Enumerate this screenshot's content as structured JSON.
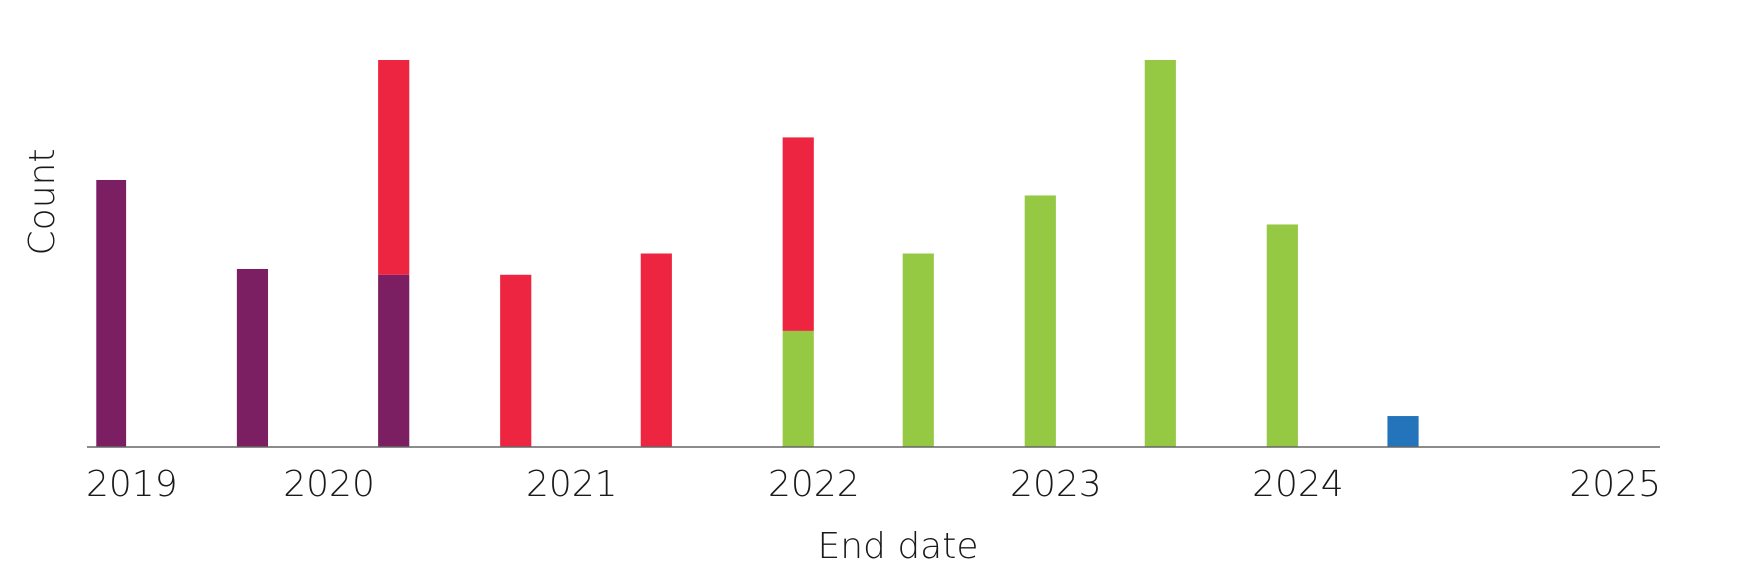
{
  "chart_data": {
    "type": "bar",
    "stacked": true,
    "xlabel": "End date",
    "ylabel": "Count",
    "x_ticks": [
      "2019",
      "2020",
      "2021",
      "2022",
      "2023",
      "2024",
      "2025"
    ],
    "y_ticks_shown": false,
    "grid": false,
    "legend": "none",
    "x_range": [
      "2019-01-01",
      "2025-06-30"
    ],
    "ylim": [
      0,
      100
    ],
    "y_units_note": "relative",
    "bars": [
      {
        "x_start": "2019-01-15",
        "x_end": "2019-03-01",
        "segments": [
          {
            "color": "#7B1E62",
            "value": 69
          }
        ]
      },
      {
        "x_start": "2019-08-15",
        "x_end": "2019-10-01",
        "segments": [
          {
            "color": "#7B1E62",
            "value": 46
          }
        ]
      },
      {
        "x_start": "2020-03-15",
        "x_end": "2020-05-01",
        "segments": [
          {
            "color": "#7B1E62",
            "value": 44.5
          },
          {
            "color": "#EE2541",
            "value": 55.5
          }
        ]
      },
      {
        "x_start": "2020-09-15",
        "x_end": "2020-11-01",
        "segments": [
          {
            "color": "#EE2541",
            "value": 44.5
          }
        ]
      },
      {
        "x_start": "2021-04-15",
        "x_end": "2021-06-01",
        "segments": [
          {
            "color": "#EE2541",
            "value": 50
          }
        ]
      },
      {
        "x_start": "2021-11-15",
        "x_end": "2022-01-01",
        "segments": [
          {
            "color": "#95C843",
            "value": 30
          },
          {
            "color": "#EE2541",
            "value": 50
          }
        ]
      },
      {
        "x_start": "2022-05-15",
        "x_end": "2022-07-01",
        "segments": [
          {
            "color": "#95C843",
            "value": 50
          }
        ]
      },
      {
        "x_start": "2022-11-15",
        "x_end": "2023-01-01",
        "segments": [
          {
            "color": "#95C843",
            "value": 65
          }
        ]
      },
      {
        "x_start": "2023-05-15",
        "x_end": "2023-07-01",
        "segments": [
          {
            "color": "#95C843",
            "value": 100
          }
        ]
      },
      {
        "x_start": "2023-11-15",
        "x_end": "2024-01-01",
        "segments": [
          {
            "color": "#95C843",
            "value": 57.5
          }
        ]
      },
      {
        "x_start": "2024-05-15",
        "x_end": "2024-07-01",
        "segments": [
          {
            "color": "#2374BB",
            "value": 8
          }
        ]
      }
    ],
    "axis_color": "#666666"
  }
}
